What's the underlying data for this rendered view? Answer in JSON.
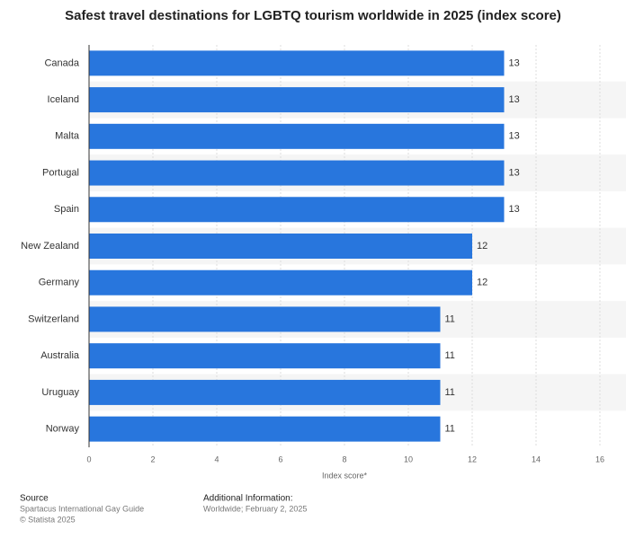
{
  "chart_data": {
    "type": "bar",
    "orientation": "horizontal",
    "title": "Safest travel destinations for LGBTQ tourism worldwide in 2025 (index score)",
    "categories": [
      "Canada",
      "Iceland",
      "Malta",
      "Portugal",
      "Spain",
      "New Zealand",
      "Germany",
      "Switzerland",
      "Australia",
      "Uruguay",
      "Norway"
    ],
    "values": [
      13,
      13,
      13,
      13,
      13,
      12,
      12,
      11,
      11,
      11,
      11
    ],
    "color": "#2876dd",
    "xlabel": "Index score*",
    "xlim": [
      0,
      16
    ],
    "xticks": [
      0,
      2,
      4,
      6,
      8,
      10,
      12,
      14,
      16
    ],
    "grid": true,
    "source_label": "Source",
    "source_text": "Spartacus International Gay Guide",
    "copyright": "© Statista 2025",
    "info_label": "Additional Information:",
    "info_text": "Worldwide; February 2, 2025"
  }
}
